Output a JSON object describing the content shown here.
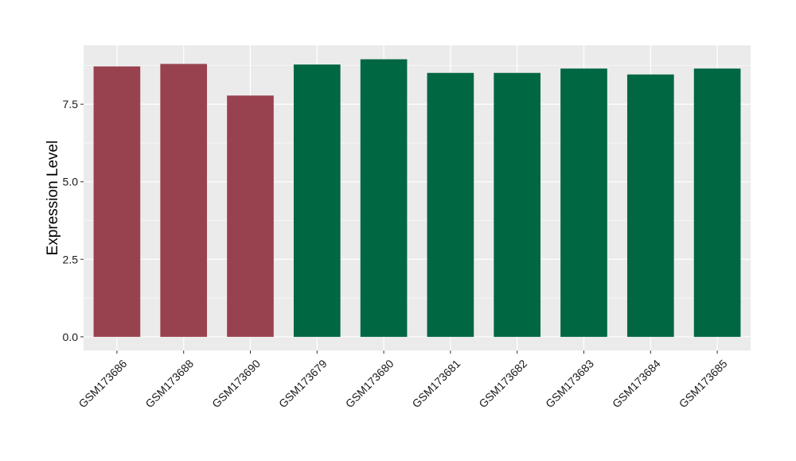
{
  "chart_data": {
    "type": "bar",
    "categories": [
      "GSM173686",
      "GSM173688",
      "GSM173690",
      "GSM173679",
      "GSM173680",
      "GSM173681",
      "GSM173682",
      "GSM173683",
      "GSM173684",
      "GSM173685"
    ],
    "values": [
      8.72,
      8.8,
      7.78,
      8.78,
      8.95,
      8.51,
      8.51,
      8.65,
      8.46,
      8.65
    ],
    "bar_colors": [
      "#99424f",
      "#99424f",
      "#99424f",
      "#006743",
      "#006743",
      "#006743",
      "#006743",
      "#006743",
      "#006743",
      "#006743"
    ],
    "title": "",
    "xlabel": "",
    "ylabel": "Expression Level",
    "ylim": [
      -0.44,
      9.4
    ],
    "yticks": [
      0,
      2.5,
      5,
      7.5
    ],
    "ytick_labels": [
      "0.0",
      "2.5",
      "5.0",
      "7.5"
    ],
    "grid": true,
    "legend": "none",
    "panel_background": "#ebebeb",
    "grid_color": "#ffffff"
  }
}
